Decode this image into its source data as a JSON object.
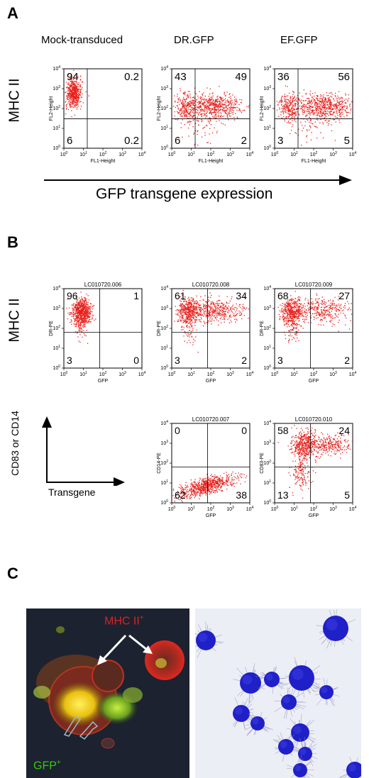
{
  "panel_a": {
    "letter": "A",
    "ylabel": "MHC II",
    "xlabel": "GFP transgene expression",
    "axis_y": "FL2-Height",
    "axis_x": "FL1-Height",
    "plots": [
      {
        "title": "Mock-transduced",
        "tl": "94",
        "tr": "0.2",
        "bl": "6",
        "br": "0.2"
      },
      {
        "title": "DR.GFP",
        "tl": "43",
        "tr": "49",
        "bl": "6",
        "br": "2"
      },
      {
        "title": "EF.GFP",
        "tl": "36",
        "tr": "56",
        "bl": "3",
        "br": "5"
      }
    ]
  },
  "panel_b": {
    "letter": "B",
    "ylabel": "MHC II",
    "axis_label_y2": "CD83 or CD14",
    "axis_label_x2": "Transgene",
    "row1": [
      {
        "title": "LC010720.006",
        "ylab": "DR-PE",
        "xlab": "GFP",
        "tl": "96",
        "tr": "1",
        "bl": "3",
        "br": "0"
      },
      {
        "title": "LC010720.008",
        "ylab": "DR-PE",
        "xlab": "GFP",
        "tl": "61",
        "tr": "34",
        "bl": "3",
        "br": "2"
      },
      {
        "title": "LC010720.009",
        "ylab": "DR-PE",
        "xlab": "GFP",
        "tl": "68",
        "tr": "27",
        "bl": "3",
        "br": "2"
      }
    ],
    "row2": [
      {
        "title": "LC010720.007",
        "ylab": "CD14-PE",
        "xlab": "GFP",
        "tl": "0",
        "tr": "0",
        "bl": "62",
        "br": "38"
      },
      {
        "title": "LC010720.010",
        "ylab": "CD83-PE",
        "xlab": "GFP",
        "tl": "58",
        "tr": "24",
        "bl": "13",
        "br": "5"
      }
    ]
  },
  "panel_c": {
    "letter": "C",
    "label_red": "MHC II",
    "label_red_sup": "+",
    "label_green": "GFP",
    "label_green_sup": "+"
  },
  "colors": {
    "dots": "#e8201c",
    "red_label": "#e02020",
    "green_label": "#2ed000",
    "stain": "#2020c8"
  }
}
